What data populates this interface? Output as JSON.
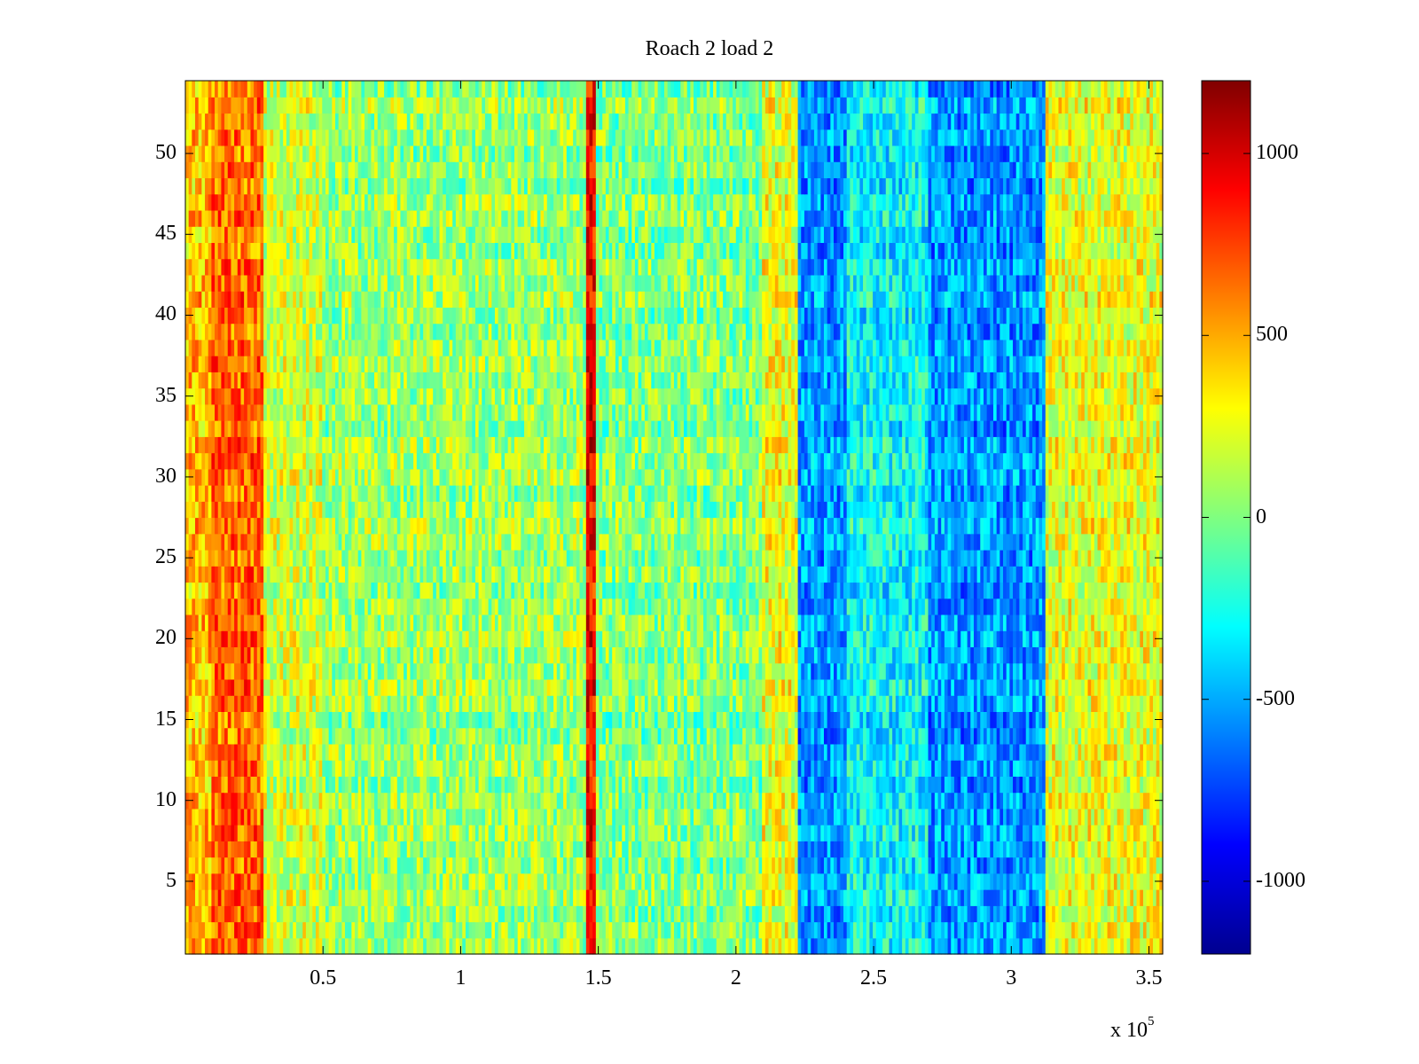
{
  "chart_data": [
    {
      "type": "heatmap",
      "title": "Roach 2 load 2",
      "xlabel": "",
      "ylabel": "",
      "x_multiplier_label": "x 10",
      "x_multiplier_exponent": "5",
      "xlim": [
        0,
        355000
      ],
      "ylim": [
        0.5,
        54.5
      ],
      "x_ticks": [
        {
          "value": 50000,
          "label": "0.5"
        },
        {
          "value": 100000,
          "label": "1"
        },
        {
          "value": 150000,
          "label": "1.5"
        },
        {
          "value": 200000,
          "label": "2"
        },
        {
          "value": 250000,
          "label": "2.5"
        },
        {
          "value": 300000,
          "label": "3"
        },
        {
          "value": 350000,
          "label": "3.5"
        }
      ],
      "y_ticks": [
        {
          "value": 5,
          "label": "5"
        },
        {
          "value": 10,
          "label": "10"
        },
        {
          "value": 15,
          "label": "15"
        },
        {
          "value": 20,
          "label": "20"
        },
        {
          "value": 25,
          "label": "25"
        },
        {
          "value": 30,
          "label": "30"
        },
        {
          "value": 35,
          "label": "35"
        },
        {
          "value": 40,
          "label": "40"
        },
        {
          "value": 45,
          "label": "45"
        },
        {
          "value": 50,
          "label": "50"
        }
      ],
      "rows": 54,
      "colormap": "jet",
      "clim": [
        -1200,
        1200
      ],
      "colorbar_ticks": [
        {
          "value": 1000,
          "label": "1000"
        },
        {
          "value": 500,
          "label": "500"
        },
        {
          "value": 0,
          "label": "0"
        },
        {
          "value": -500,
          "label": "-500"
        },
        {
          "value": -1000,
          "label": "-1000"
        }
      ],
      "column_profile": [
        {
          "x_start": 0,
          "x_end": 10000,
          "mean": 450
        },
        {
          "x_start": 10000,
          "x_end": 28000,
          "mean": 650
        },
        {
          "x_start": 28000,
          "x_end": 50000,
          "mean": 180
        },
        {
          "x_start": 50000,
          "x_end": 146000,
          "mean": 60
        },
        {
          "x_start": 146000,
          "x_end": 149000,
          "mean": 900
        },
        {
          "x_start": 149000,
          "x_end": 210000,
          "mean": 0
        },
        {
          "x_start": 210000,
          "x_end": 222000,
          "mean": 250
        },
        {
          "x_start": 222000,
          "x_end": 240000,
          "mean": -550
        },
        {
          "x_start": 240000,
          "x_end": 270000,
          "mean": -300
        },
        {
          "x_start": 270000,
          "x_end": 312000,
          "mean": -550
        },
        {
          "x_start": 312000,
          "x_end": 355000,
          "mean": 250
        }
      ],
      "grid": false,
      "colorbar_position": "right"
    }
  ]
}
